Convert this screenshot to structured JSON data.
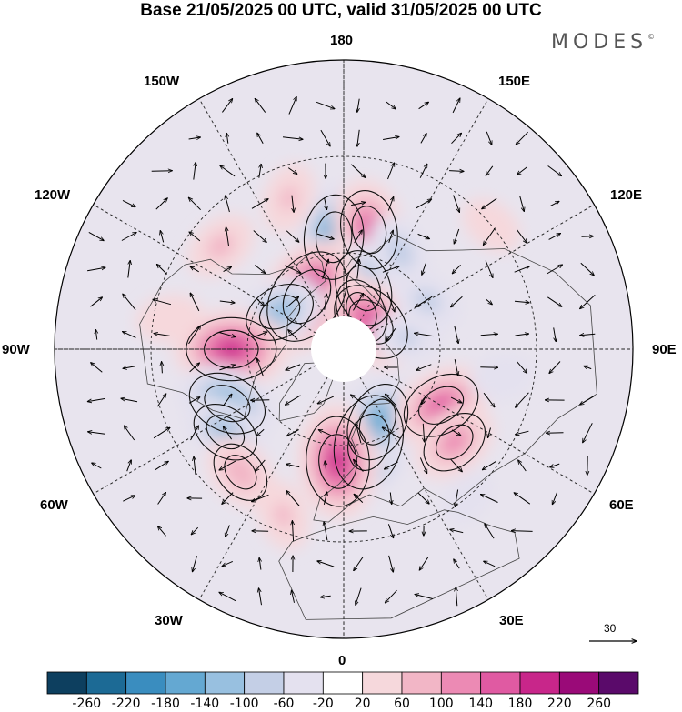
{
  "title": "Base 21/05/2025 00 UTC, valid 31/05/2025 00 UTC",
  "logo": "MODES",
  "logo_mark": "©",
  "longitude_labels": {
    "n180": "180",
    "w150": "150W",
    "e150": "150E",
    "w120": "120W",
    "e120": "120E",
    "w90": "90W",
    "e90": "90E",
    "w60": "60W",
    "e60": "60E",
    "w30": "30W",
    "e30": "30E",
    "s0": "0"
  },
  "vector_scale": {
    "label": "30"
  },
  "colorbar": {
    "labels": [
      "-260",
      "-220",
      "-180",
      "-140",
      "-100",
      "-60",
      "-20",
      "20",
      "60",
      "100",
      "140",
      "180",
      "220",
      "260"
    ],
    "colors": [
      "#0d3f5f",
      "#1c6a95",
      "#3a8dbf",
      "#64a8d2",
      "#98c0e0",
      "#c4cfe6",
      "#e4e1ef",
      "#ffffff",
      "#f6d8dc",
      "#f2b6c6",
      "#ec8ab4",
      "#e05aa2",
      "#c8268a",
      "#9a0a78",
      "#5a0a6a"
    ]
  },
  "anomaly_centers": [
    {
      "lon": -175,
      "lat": 55,
      "value": -180
    },
    {
      "lon": 168,
      "lat": 52,
      "value": 160
    },
    {
      "lon": 150,
      "lat": 55,
      "value": -90
    },
    {
      "lon": 162,
      "lat": 70,
      "value": -150
    },
    {
      "lon": 155,
      "lat": 77,
      "value": -110
    },
    {
      "lon": -145,
      "lat": 70,
      "value": 230
    },
    {
      "lon": 135,
      "lat": 78,
      "value": 180
    },
    {
      "lon": 120,
      "lat": 60,
      "value": -80
    },
    {
      "lon": 100,
      "lat": 70,
      "value": -70
    },
    {
      "lon": -120,
      "lat": 67,
      "value": -130
    },
    {
      "lon": -90,
      "lat": 55,
      "value": 200
    },
    {
      "lon": -65,
      "lat": 50,
      "value": -160
    },
    {
      "lon": -55,
      "lat": 45,
      "value": -120
    },
    {
      "lon": -40,
      "lat": 40,
      "value": 100
    },
    {
      "lon": 15,
      "lat": 60,
      "value": -220
    },
    {
      "lon": 25,
      "lat": 65,
      "value": -160
    },
    {
      "lon": -3,
      "lat": 55,
      "value": 200
    },
    {
      "lon": 60,
      "lat": 55,
      "value": 160
    },
    {
      "lon": 50,
      "lat": 45,
      "value": 120
    },
    {
      "lon": -20,
      "lat": 35,
      "value": 70
    },
    {
      "lon": -130,
      "lat": 40,
      "value": 80
    },
    {
      "lon": -160,
      "lat": 40,
      "value": 70
    },
    {
      "lon": 130,
      "lat": 30,
      "value": 50
    },
    {
      "lon": -100,
      "lat": 35,
      "value": 60
    },
    {
      "lon": 40,
      "lat": 30,
      "value": -40
    },
    {
      "lon": 80,
      "lat": 40,
      "value": -50
    }
  ]
}
